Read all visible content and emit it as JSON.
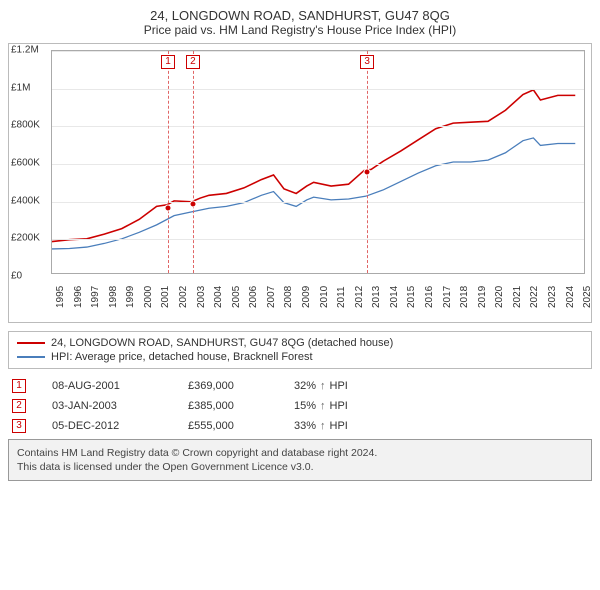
{
  "title": "24, LONGDOWN ROAD, SANDHURST, GU47 8QG",
  "subtitle": "Price paid vs. HM Land Registry's House Price Index (HPI)",
  "chart": {
    "type": "line",
    "x_domain": [
      1995,
      2025.5
    ],
    "ylim": [
      0,
      1200000
    ],
    "ytick_step": 200000,
    "ytick_labels": [
      "£0",
      "£200K",
      "£400K",
      "£600K",
      "£800K",
      "£1M",
      "£1.2M"
    ],
    "x_ticks": [
      1995,
      1996,
      1997,
      1998,
      1999,
      2000,
      2001,
      2002,
      2003,
      2004,
      2005,
      2006,
      2007,
      2008,
      2009,
      2010,
      2011,
      2012,
      2013,
      2014,
      2015,
      2016,
      2017,
      2018,
      2019,
      2020,
      2021,
      2022,
      2023,
      2024,
      2025
    ],
    "grid_color": "#e8e8e8",
    "background_color": "#ffffff",
    "marker_line_color": "#e06666",
    "series": [
      {
        "id": "property",
        "color": "#cc0000",
        "width": 1.6,
        "label": "24, LONGDOWN ROAD, SANDHURST, GU47 8QG (detached house)",
        "points": [
          [
            1995,
            170000
          ],
          [
            1996,
            180000
          ],
          [
            1997,
            185000
          ],
          [
            1998,
            210000
          ],
          [
            1999,
            240000
          ],
          [
            2000,
            290000
          ],
          [
            2001,
            360000
          ],
          [
            2001.6,
            369000
          ],
          [
            2002,
            390000
          ],
          [
            2003,
            385000
          ],
          [
            2003.5,
            405000
          ],
          [
            2004,
            420000
          ],
          [
            2005,
            430000
          ],
          [
            2006,
            460000
          ],
          [
            2007,
            505000
          ],
          [
            2007.7,
            530000
          ],
          [
            2008.3,
            455000
          ],
          [
            2009,
            430000
          ],
          [
            2009.6,
            470000
          ],
          [
            2010,
            490000
          ],
          [
            2011,
            470000
          ],
          [
            2012,
            480000
          ],
          [
            2012.9,
            555000
          ],
          [
            2013.3,
            560000
          ],
          [
            2014,
            605000
          ],
          [
            2015,
            660000
          ],
          [
            2016,
            720000
          ],
          [
            2017,
            780000
          ],
          [
            2018,
            810000
          ],
          [
            2019,
            815000
          ],
          [
            2020,
            820000
          ],
          [
            2021,
            880000
          ],
          [
            2022,
            965000
          ],
          [
            2022.6,
            990000
          ],
          [
            2023,
            935000
          ],
          [
            2024,
            960000
          ],
          [
            2025,
            960000
          ]
        ]
      },
      {
        "id": "hpi",
        "color": "#4a7ebb",
        "width": 1.3,
        "label": "HPI: Average price, detached house, Bracknell Forest",
        "points": [
          [
            1995,
            130000
          ],
          [
            1996,
            132000
          ],
          [
            1997,
            140000
          ],
          [
            1998,
            160000
          ],
          [
            1999,
            185000
          ],
          [
            2000,
            220000
          ],
          [
            2001,
            260000
          ],
          [
            2002,
            310000
          ],
          [
            2003,
            330000
          ],
          [
            2004,
            350000
          ],
          [
            2005,
            360000
          ],
          [
            2006,
            380000
          ],
          [
            2007,
            420000
          ],
          [
            2007.7,
            440000
          ],
          [
            2008.3,
            380000
          ],
          [
            2009,
            360000
          ],
          [
            2009.6,
            395000
          ],
          [
            2010,
            410000
          ],
          [
            2011,
            395000
          ],
          [
            2012,
            400000
          ],
          [
            2013,
            415000
          ],
          [
            2014,
            450000
          ],
          [
            2015,
            495000
          ],
          [
            2016,
            540000
          ],
          [
            2017,
            580000
          ],
          [
            2018,
            600000
          ],
          [
            2019,
            600000
          ],
          [
            2020,
            610000
          ],
          [
            2021,
            650000
          ],
          [
            2022,
            715000
          ],
          [
            2022.6,
            730000
          ],
          [
            2023,
            690000
          ],
          [
            2024,
            700000
          ],
          [
            2025,
            700000
          ]
        ]
      }
    ],
    "markers": [
      {
        "n": "1",
        "x": 2001.6,
        "y": 369000
      },
      {
        "n": "2",
        "x": 2003.02,
        "y": 385000
      },
      {
        "n": "3",
        "x": 2012.93,
        "y": 555000
      }
    ]
  },
  "legend": [
    {
      "color": "#cc0000",
      "text": "24, LONGDOWN ROAD, SANDHURST, GU47 8QG (detached house)"
    },
    {
      "color": "#4a7ebb",
      "text": "HPI: Average price, detached house, Bracknell Forest"
    }
  ],
  "transactions": [
    {
      "n": "1",
      "date": "08-AUG-2001",
      "price": "£369,000",
      "pct": "32%",
      "ref": "HPI"
    },
    {
      "n": "2",
      "date": "03-JAN-2003",
      "price": "£385,000",
      "pct": "15%",
      "ref": "HPI"
    },
    {
      "n": "3",
      "date": "05-DEC-2012",
      "price": "£555,000",
      "pct": "33%",
      "ref": "HPI"
    }
  ],
  "footer": {
    "line1": "Contains HM Land Registry data © Crown copyright and database right 2024.",
    "line2": "This data is licensed under the Open Government Licence v3.0."
  }
}
